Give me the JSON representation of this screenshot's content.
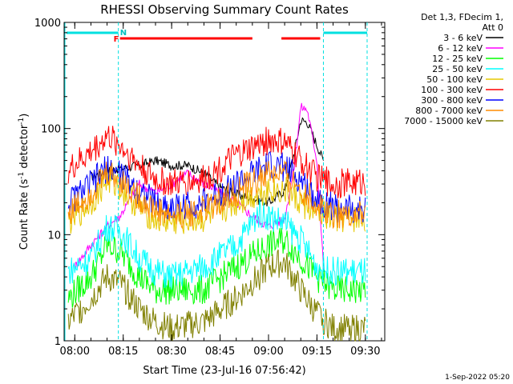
{
  "chart_data": {
    "type": "line",
    "title": "RHESSI Observing Summary Count Rates",
    "xlabel": "Start Time (23-Jul-16 07:56:42)",
    "ylabel_main": "Count Rate (s",
    "ylabel_sup": "-1",
    "ylabel_tail": " detector",
    "ylabel_sup2": "-1",
    "ylabel_close": ")",
    "y_scale": "log",
    "ylim": [
      1,
      1000
    ],
    "xlim": [
      "07:56:42",
      "09:36:00"
    ],
    "x_ticks": [
      "08:00",
      "08:15",
      "08:30",
      "08:45",
      "09:00",
      "09:15",
      "09:30"
    ],
    "y_ticks": [
      "1",
      "10",
      "100",
      "1000"
    ],
    "legend_header": [
      "Det 1,3, FDecim 1,",
      "Att 0"
    ],
    "legend_position": "right",
    "footer": "1-Sep-2022 05:20",
    "night_markers": [
      "08:13:30",
      "09:17:00"
    ],
    "orbit_markers": {
      "F_label": "F",
      "N_label": "N"
    },
    "series": [
      {
        "name": "3 - 6 keV",
        "color": "#000000",
        "x": [
          "08:05",
          "08:10",
          "08:14",
          "08:20",
          "08:25",
          "08:30",
          "08:35",
          "08:40",
          "08:45",
          "08:50",
          "08:55",
          "09:00",
          "09:05",
          "09:08",
          "09:10",
          "09:12",
          "09:15",
          "09:17"
        ],
        "values": [
          35,
          40,
          42,
          45,
          50,
          45,
          45,
          38,
          28,
          24,
          22,
          20,
          26,
          60,
          120,
          115,
          70,
          50
        ]
      },
      {
        "name": "6 - 12 keV",
        "color": "#ff00ff",
        "x": [
          "08:00",
          "08:05",
          "08:10",
          "08:14",
          "08:20",
          "08:25",
          "08:30",
          "08:35",
          "08:40",
          "08:45",
          "08:50",
          "08:55",
          "09:00",
          "09:05",
          "09:08",
          "09:10",
          "09:12",
          "09:15",
          "09:17"
        ],
        "values": [
          5,
          8,
          12,
          15,
          30,
          25,
          30,
          38,
          30,
          25,
          20,
          15,
          12,
          14,
          45,
          160,
          150,
          50,
          5
        ]
      },
      {
        "name": "12 - 25 keV",
        "color": "#00ff00",
        "x": [
          "07:58",
          "08:05",
          "08:10",
          "08:14",
          "08:20",
          "08:25",
          "08:30",
          "08:40",
          "08:50",
          "09:00",
          "09:05",
          "09:10",
          "09:15",
          "09:20",
          "09:30"
        ],
        "values": [
          2.5,
          4,
          8,
          7,
          4,
          3,
          3,
          3,
          5,
          8,
          9,
          6,
          4,
          3,
          3
        ]
      },
      {
        "name": "25 - 50 keV",
        "color": "#00ffff",
        "x": [
          "07:58",
          "08:05",
          "08:10",
          "08:14",
          "08:20",
          "08:25",
          "08:30",
          "08:40",
          "08:50",
          "08:57",
          "09:00",
          "09:05",
          "09:10",
          "09:15",
          "09:20",
          "09:30"
        ],
        "values": [
          4.5,
          6,
          12,
          11,
          6,
          4.5,
          4,
          5,
          8,
          16,
          15,
          13,
          9,
          5,
          4.5,
          4.5
        ]
      },
      {
        "name": "50 - 100 keV",
        "color": "#e6c800",
        "x": [
          "07:58",
          "08:05",
          "08:10",
          "08:14",
          "08:20",
          "08:25",
          "08:30",
          "08:40",
          "08:50",
          "09:00",
          "09:05",
          "09:10",
          "09:15",
          "09:20",
          "09:30"
        ],
        "values": [
          13,
          20,
          33,
          28,
          18,
          14,
          13,
          14,
          20,
          27,
          26,
          20,
          16,
          14,
          14
        ]
      },
      {
        "name": "100 - 300 keV",
        "color": "#ff0000",
        "x": [
          "07:58",
          "08:05",
          "08:10",
          "08:14",
          "08:20",
          "08:25",
          "08:30",
          "08:40",
          "08:50",
          "09:00",
          "09:05",
          "09:10",
          "09:15",
          "09:20",
          "09:30"
        ],
        "values": [
          40,
          60,
          85,
          70,
          45,
          33,
          30,
          33,
          55,
          78,
          73,
          50,
          35,
          30,
          32
        ]
      },
      {
        "name": "300 - 800 keV",
        "color": "#0000ff",
        "x": [
          "07:58",
          "08:05",
          "08:10",
          "08:14",
          "08:20",
          "08:25",
          "08:30",
          "08:40",
          "08:50",
          "09:00",
          "09:05",
          "09:10",
          "09:15",
          "09:20",
          "09:30"
        ],
        "values": [
          20,
          30,
          42,
          38,
          26,
          20,
          18,
          20,
          30,
          45,
          43,
          32,
          22,
          18,
          17
        ]
      },
      {
        "name": "800 - 7000 keV",
        "color": "#ff8c00",
        "x": [
          "07:58",
          "08:05",
          "08:10",
          "08:14",
          "08:20",
          "08:25",
          "08:30",
          "08:40",
          "08:50",
          "09:00",
          "09:05",
          "09:10",
          "09:15",
          "09:20",
          "09:30"
        ],
        "values": [
          16,
          25,
          38,
          33,
          22,
          17,
          15,
          17,
          25,
          38,
          36,
          27,
          19,
          16,
          15
        ]
      },
      {
        "name": "7000 - 15000 keV",
        "color": "#808000",
        "x": [
          "07:58",
          "08:05",
          "08:10",
          "08:14",
          "08:20",
          "08:25",
          "08:30",
          "08:40",
          "08:50",
          "09:00",
          "09:05",
          "09:10",
          "09:15",
          "09:20",
          "09:30"
        ],
        "values": [
          1.5,
          2.5,
          4,
          3.5,
          2,
          1.5,
          1.3,
          1.5,
          2.5,
          5,
          5.5,
          3,
          1.8,
          1.3,
          1.3
        ]
      }
    ]
  }
}
